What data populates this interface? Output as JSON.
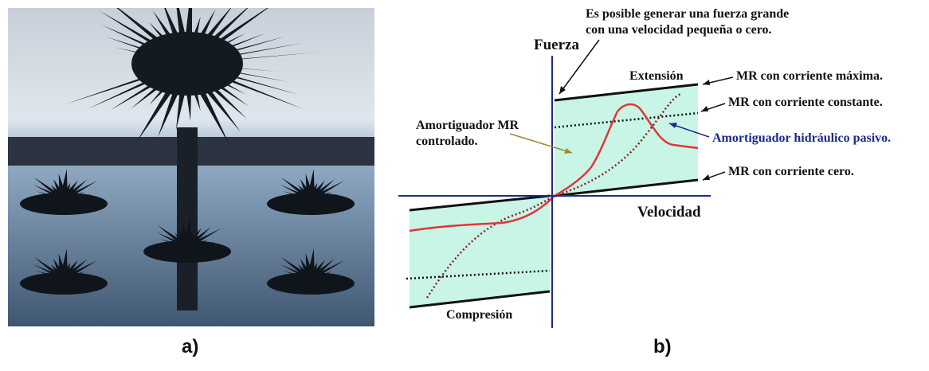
{
  "captions": {
    "a": "a)",
    "b": "b)"
  },
  "diagram": {
    "axis_y_label": "Fuerza",
    "axis_x_label": "Velocidad",
    "region_top_label": "Extensión",
    "region_bottom_label": "Compresión",
    "annotations": {
      "note_line1": "Es posible generar una fuerza grande",
      "note_line2": "con una velocidad pequeña o cero.",
      "controlled_line1": "Amortiguador MR",
      "controlled_line2": "controlado.",
      "max_current": "MR con corriente máxima.",
      "constant_current": "MR con corriente constante.",
      "passive": "Amortiguador hidráulico pasivo.",
      "zero_current": "MR con corriente cero."
    },
    "colors": {
      "region_fill": "#c8f5e6",
      "axes": "#1c2a8c",
      "controlled_curve": "#e0353a",
      "passive_curve": "#8a2020",
      "passive_label": "#1a2a8c"
    }
  }
}
